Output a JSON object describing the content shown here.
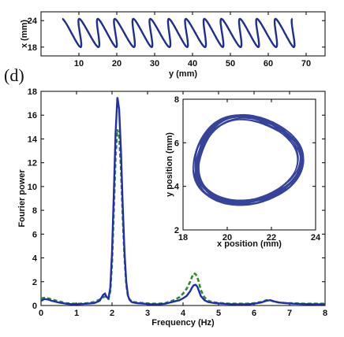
{
  "panel_label": "(d)",
  "colors": {
    "trajectory": "#1f2f8f",
    "solid": "#1f2fb0",
    "dashed": "#2e8b2e",
    "axis": "#000000"
  },
  "chart_data": [
    {
      "id": "top",
      "type": "line",
      "title": "",
      "xlabel": "y (mm)",
      "ylabel": "x (mm)",
      "xlim": [
        0,
        75
      ],
      "ylim": [
        16,
        26
      ],
      "xticks": [
        10,
        20,
        30,
        40,
        50,
        60,
        70
      ],
      "yticks": [
        18,
        24
      ],
      "helix": {
        "x_start": 5.5,
        "x_end": 66.5,
        "loops": 13,
        "center": 21.2,
        "amplitude": 3.2,
        "radius_mm": 2.6
      }
    },
    {
      "id": "main",
      "type": "line",
      "title": "",
      "xlabel": "Frequency (Hz)",
      "ylabel": "Fourier power",
      "xlim": [
        0,
        8
      ],
      "ylim": [
        0,
        18
      ],
      "xticks": [
        0,
        1,
        2,
        3,
        4,
        5,
        6,
        7,
        8
      ],
      "yticks": [
        0,
        2,
        4,
        6,
        8,
        10,
        12,
        14,
        16,
        18
      ],
      "series": [
        {
          "style": "solid",
          "x": [
            0,
            0.1,
            0.2,
            0.3,
            0.5,
            0.7,
            0.9,
            1.1,
            1.3,
            1.5,
            1.65,
            1.75,
            1.8,
            1.85,
            1.9,
            1.95,
            2.0,
            2.05,
            2.1,
            2.15,
            2.2,
            2.25,
            2.3,
            2.35,
            2.4,
            2.45,
            2.5,
            2.55,
            2.6,
            2.7,
            2.9,
            3.1,
            3.3,
            3.5,
            3.7,
            3.9,
            4.0,
            4.1,
            4.2,
            4.25,
            4.3,
            4.35,
            4.4,
            4.45,
            4.5,
            4.6,
            4.7,
            4.9,
            5.1,
            5.3,
            5.5,
            5.8,
            6.0,
            6.2,
            6.35,
            6.45,
            6.55,
            6.7,
            6.9,
            7.1,
            7.4,
            7.7,
            8.0
          ],
          "y": [
            0.4,
            0.55,
            0.5,
            0.4,
            0.25,
            0.15,
            0.1,
            0.12,
            0.15,
            0.2,
            0.4,
            0.9,
            1.0,
            0.7,
            0.6,
            1.5,
            4.5,
            9.5,
            14.5,
            17.5,
            16.5,
            13.0,
            8.5,
            4.5,
            2.0,
            0.8,
            0.45,
            0.3,
            0.25,
            0.2,
            0.15,
            0.1,
            0.1,
            0.15,
            0.3,
            0.45,
            0.6,
            0.8,
            1.2,
            1.5,
            1.7,
            1.75,
            1.6,
            1.2,
            0.8,
            0.45,
            0.3,
            0.2,
            0.15,
            0.12,
            0.1,
            0.1,
            0.15,
            0.25,
            0.4,
            0.45,
            0.35,
            0.25,
            0.2,
            0.15,
            0.12,
            0.1,
            0.1
          ]
        },
        {
          "style": "dashed",
          "x": [
            0,
            0.1,
            0.2,
            0.3,
            0.5,
            0.7,
            0.9,
            1.1,
            1.3,
            1.5,
            1.65,
            1.75,
            1.8,
            1.85,
            1.9,
            1.95,
            2.0,
            2.05,
            2.1,
            2.15,
            2.2,
            2.25,
            2.3,
            2.35,
            2.4,
            2.45,
            2.5,
            2.55,
            2.6,
            2.7,
            2.9,
            3.1,
            3.3,
            3.5,
            3.7,
            3.9,
            4.0,
            4.1,
            4.2,
            4.25,
            4.3,
            4.35,
            4.4,
            4.45,
            4.5,
            4.6,
            4.7,
            4.9,
            5.1,
            5.3,
            5.5,
            5.8,
            6.0,
            6.2,
            6.35,
            6.45,
            6.55,
            6.7,
            6.9,
            7.1,
            7.4,
            7.7,
            8.0
          ],
          "y": [
            0.6,
            0.65,
            0.6,
            0.5,
            0.35,
            0.2,
            0.15,
            0.15,
            0.2,
            0.3,
            0.5,
            0.7,
            0.75,
            0.6,
            0.55,
            1.2,
            3.5,
            8.0,
            12.5,
            14.8,
            14.3,
            11.5,
            7.5,
            4.0,
            1.8,
            0.7,
            0.5,
            0.35,
            0.3,
            0.25,
            0.2,
            0.15,
            0.15,
            0.2,
            0.4,
            0.7,
            1.0,
            1.4,
            2.0,
            2.4,
            2.7,
            2.65,
            2.4,
            1.9,
            1.3,
            0.7,
            0.4,
            0.25,
            0.2,
            0.15,
            0.15,
            0.15,
            0.2,
            0.3,
            0.45,
            0.45,
            0.35,
            0.25,
            0.2,
            0.2,
            0.15,
            0.15,
            0.15
          ]
        }
      ]
    },
    {
      "id": "inset",
      "type": "line",
      "title": "",
      "xlabel": "x position (mm)",
      "ylabel": "y position (mm)",
      "xlim": [
        18,
        24
      ],
      "ylim": [
        2,
        8
      ],
      "xticks": [
        18,
        20,
        22,
        24
      ],
      "yticks": [
        2,
        4,
        6,
        8
      ],
      "ring": {
        "cx": 20.9,
        "cy": 5.2,
        "rx": 2.35,
        "ry": 1.95,
        "turns": 12
      }
    }
  ]
}
